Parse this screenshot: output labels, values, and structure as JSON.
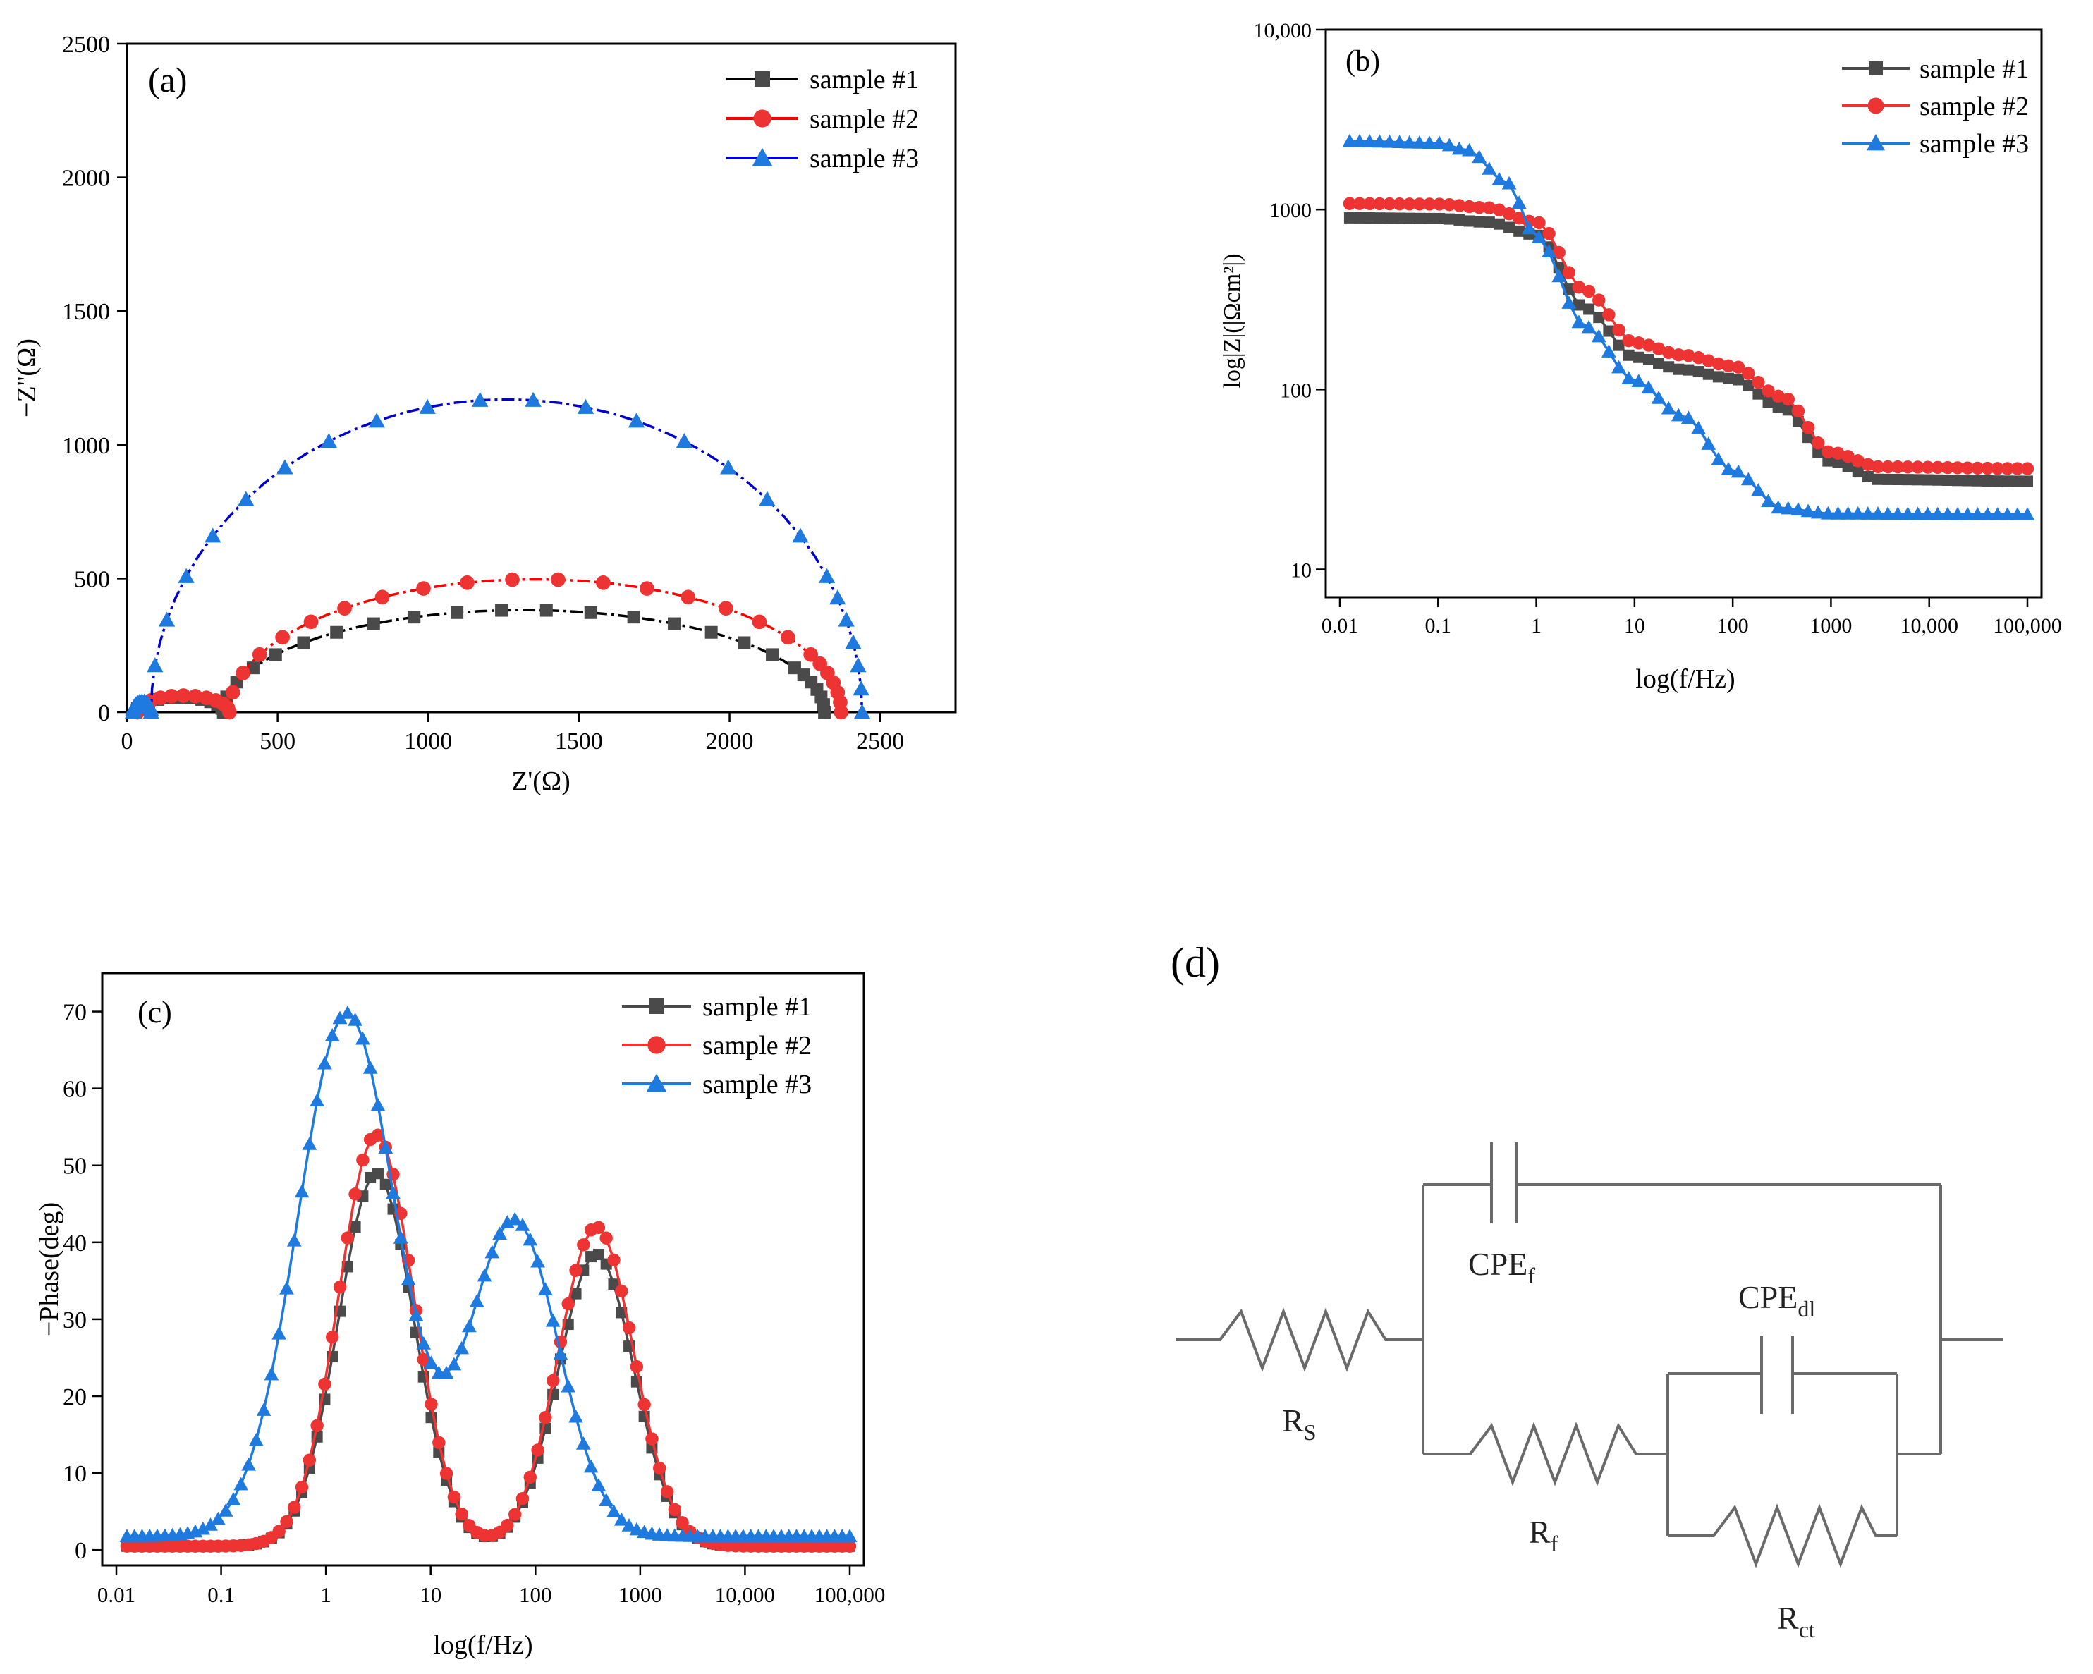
{
  "colors": {
    "sample1": "#4a4a4a",
    "sample2": "#ee3333",
    "sample3": "#1f7ae0",
    "sample1_line_a": "#000000",
    "sample2_line_a": "#ff0000",
    "sample3_line_a": "#0000cc"
  },
  "legend": [
    "sample #1",
    "sample #2",
    "sample #3"
  ],
  "chart_data": [
    {
      "id": "a",
      "type": "scatter",
      "panel_label": "(a)",
      "title": "",
      "xlabel": "Z'(Ω)",
      "ylabel": "−Z''(Ω)",
      "xlim": [
        0,
        2750
      ],
      "ylim": [
        0,
        2500
      ],
      "xticks": [
        "0",
        "500",
        "1000",
        "1500",
        "2000",
        "2500"
      ],
      "yticks": [
        "0",
        "500",
        "1000",
        "1500",
        "2000",
        "2500"
      ],
      "legend_position": "top-right",
      "series": [
        {
          "name": "sample #1",
          "params": {
            "rs": 30,
            "arc1_end": 320,
            "arc1_peak": 55,
            "arc2_end": 2315,
            "arc2_peak": 382
          }
        },
        {
          "name": "sample #2",
          "params": {
            "rs": 35,
            "arc1_end": 340,
            "arc1_peak": 62,
            "arc2_end": 2370,
            "arc2_peak": 497
          }
        },
        {
          "name": "sample #3",
          "params": {
            "rs": 20,
            "arc1_end": 80,
            "arc1_peak": 40,
            "arc2_end": 2440,
            "arc2_peak": 1170
          }
        }
      ]
    },
    {
      "id": "b",
      "type": "line",
      "panel_label": "(b)",
      "title": "",
      "xlabel": "log(f/Hz)",
      "ylabel": "log|Z|(|Ωcm²|)",
      "xscale": "log",
      "yscale": "log",
      "xlim": [
        0.01,
        100000
      ],
      "ylim": [
        7,
        10000
      ],
      "xticks": [
        "0.01",
        "0.1",
        "1",
        "10",
        "100",
        "1000",
        "10,000",
        "100,000"
      ],
      "yticks": [
        "10",
        "100",
        "1000",
        "10,000"
      ],
      "legend_position": "top-right",
      "series": [
        {
          "name": "sample #1",
          "log_x": [
            -1.9,
            -1.0,
            -0.5,
            0.0,
            0.5,
            1.0,
            1.5,
            2.0,
            2.5,
            3.0,
            3.5,
            5.0
          ],
          "log_y": [
            2.954,
            2.95,
            2.93,
            2.86,
            2.45,
            2.18,
            2.11,
            2.06,
            1.9,
            1.6,
            1.5,
            1.49
          ]
        },
        {
          "name": "sample #2",
          "log_x": [
            -1.9,
            -1.0,
            -0.5,
            0.0,
            0.5,
            1.0,
            1.5,
            2.0,
            2.5,
            3.0,
            3.5,
            5.0
          ],
          "log_y": [
            3.033,
            3.03,
            3.01,
            2.93,
            2.55,
            2.26,
            2.19,
            2.13,
            1.96,
            1.65,
            1.57,
            1.56
          ]
        },
        {
          "name": "sample #3",
          "log_x": [
            -1.9,
            -1.0,
            -0.7,
            -0.3,
            0.0,
            0.5,
            1.0,
            1.5,
            2.0,
            2.5,
            3.0,
            5.0
          ],
          "log_y": [
            3.38,
            3.37,
            3.33,
            3.15,
            2.85,
            2.35,
            2.05,
            1.85,
            1.55,
            1.34,
            1.31,
            1.305
          ]
        }
      ]
    },
    {
      "id": "c",
      "type": "line",
      "panel_label": "(c)",
      "title": "",
      "xlabel": "log(f/Hz)",
      "ylabel": "−Phase(deg)",
      "xscale": "log",
      "xlim": [
        0.01,
        100000
      ],
      "ylim": [
        -2,
        75
      ],
      "xticks": [
        "0.01",
        "0.1",
        "1",
        "10",
        "100",
        "1000",
        "10,000",
        "100,000"
      ],
      "yticks": [
        "0",
        "10",
        "20",
        "30",
        "40",
        "50",
        "60",
        "70"
      ],
      "legend_position": "top-right",
      "series": [
        {
          "name": "sample #1",
          "peaks": [
            {
              "log_f": 0.48,
              "height": 48.5,
              "width": 0.36
            },
            {
              "log_f": 2.58,
              "height": 38.0,
              "width": 0.36
            }
          ],
          "baseline": 0.5
        },
        {
          "name": "sample #2",
          "peaks": [
            {
              "log_f": 0.48,
              "height": 53.5,
              "width": 0.36
            },
            {
              "log_f": 2.58,
              "height": 41.5,
              "width": 0.36
            }
          ],
          "baseline": 0.5
        },
        {
          "name": "sample #3",
          "peaks": [
            {
              "log_f": 0.2,
              "height": 68.0,
              "width": 0.47
            },
            {
              "log_f": 1.8,
              "height": 41.0,
              "width": 0.42
            }
          ],
          "baseline": 1.8
        }
      ]
    }
  ],
  "circuit": {
    "panel_label": "(d)",
    "labels": {
      "rs_main": "R",
      "rs_sub": "S",
      "cpef_main": "CPE",
      "cpef_sub": "f",
      "cpedl_main": "CPE",
      "cpedl_sub": "dl",
      "rf_main": "R",
      "rf_sub": "f",
      "rct_main": "R",
      "rct_sub": "ct"
    }
  }
}
